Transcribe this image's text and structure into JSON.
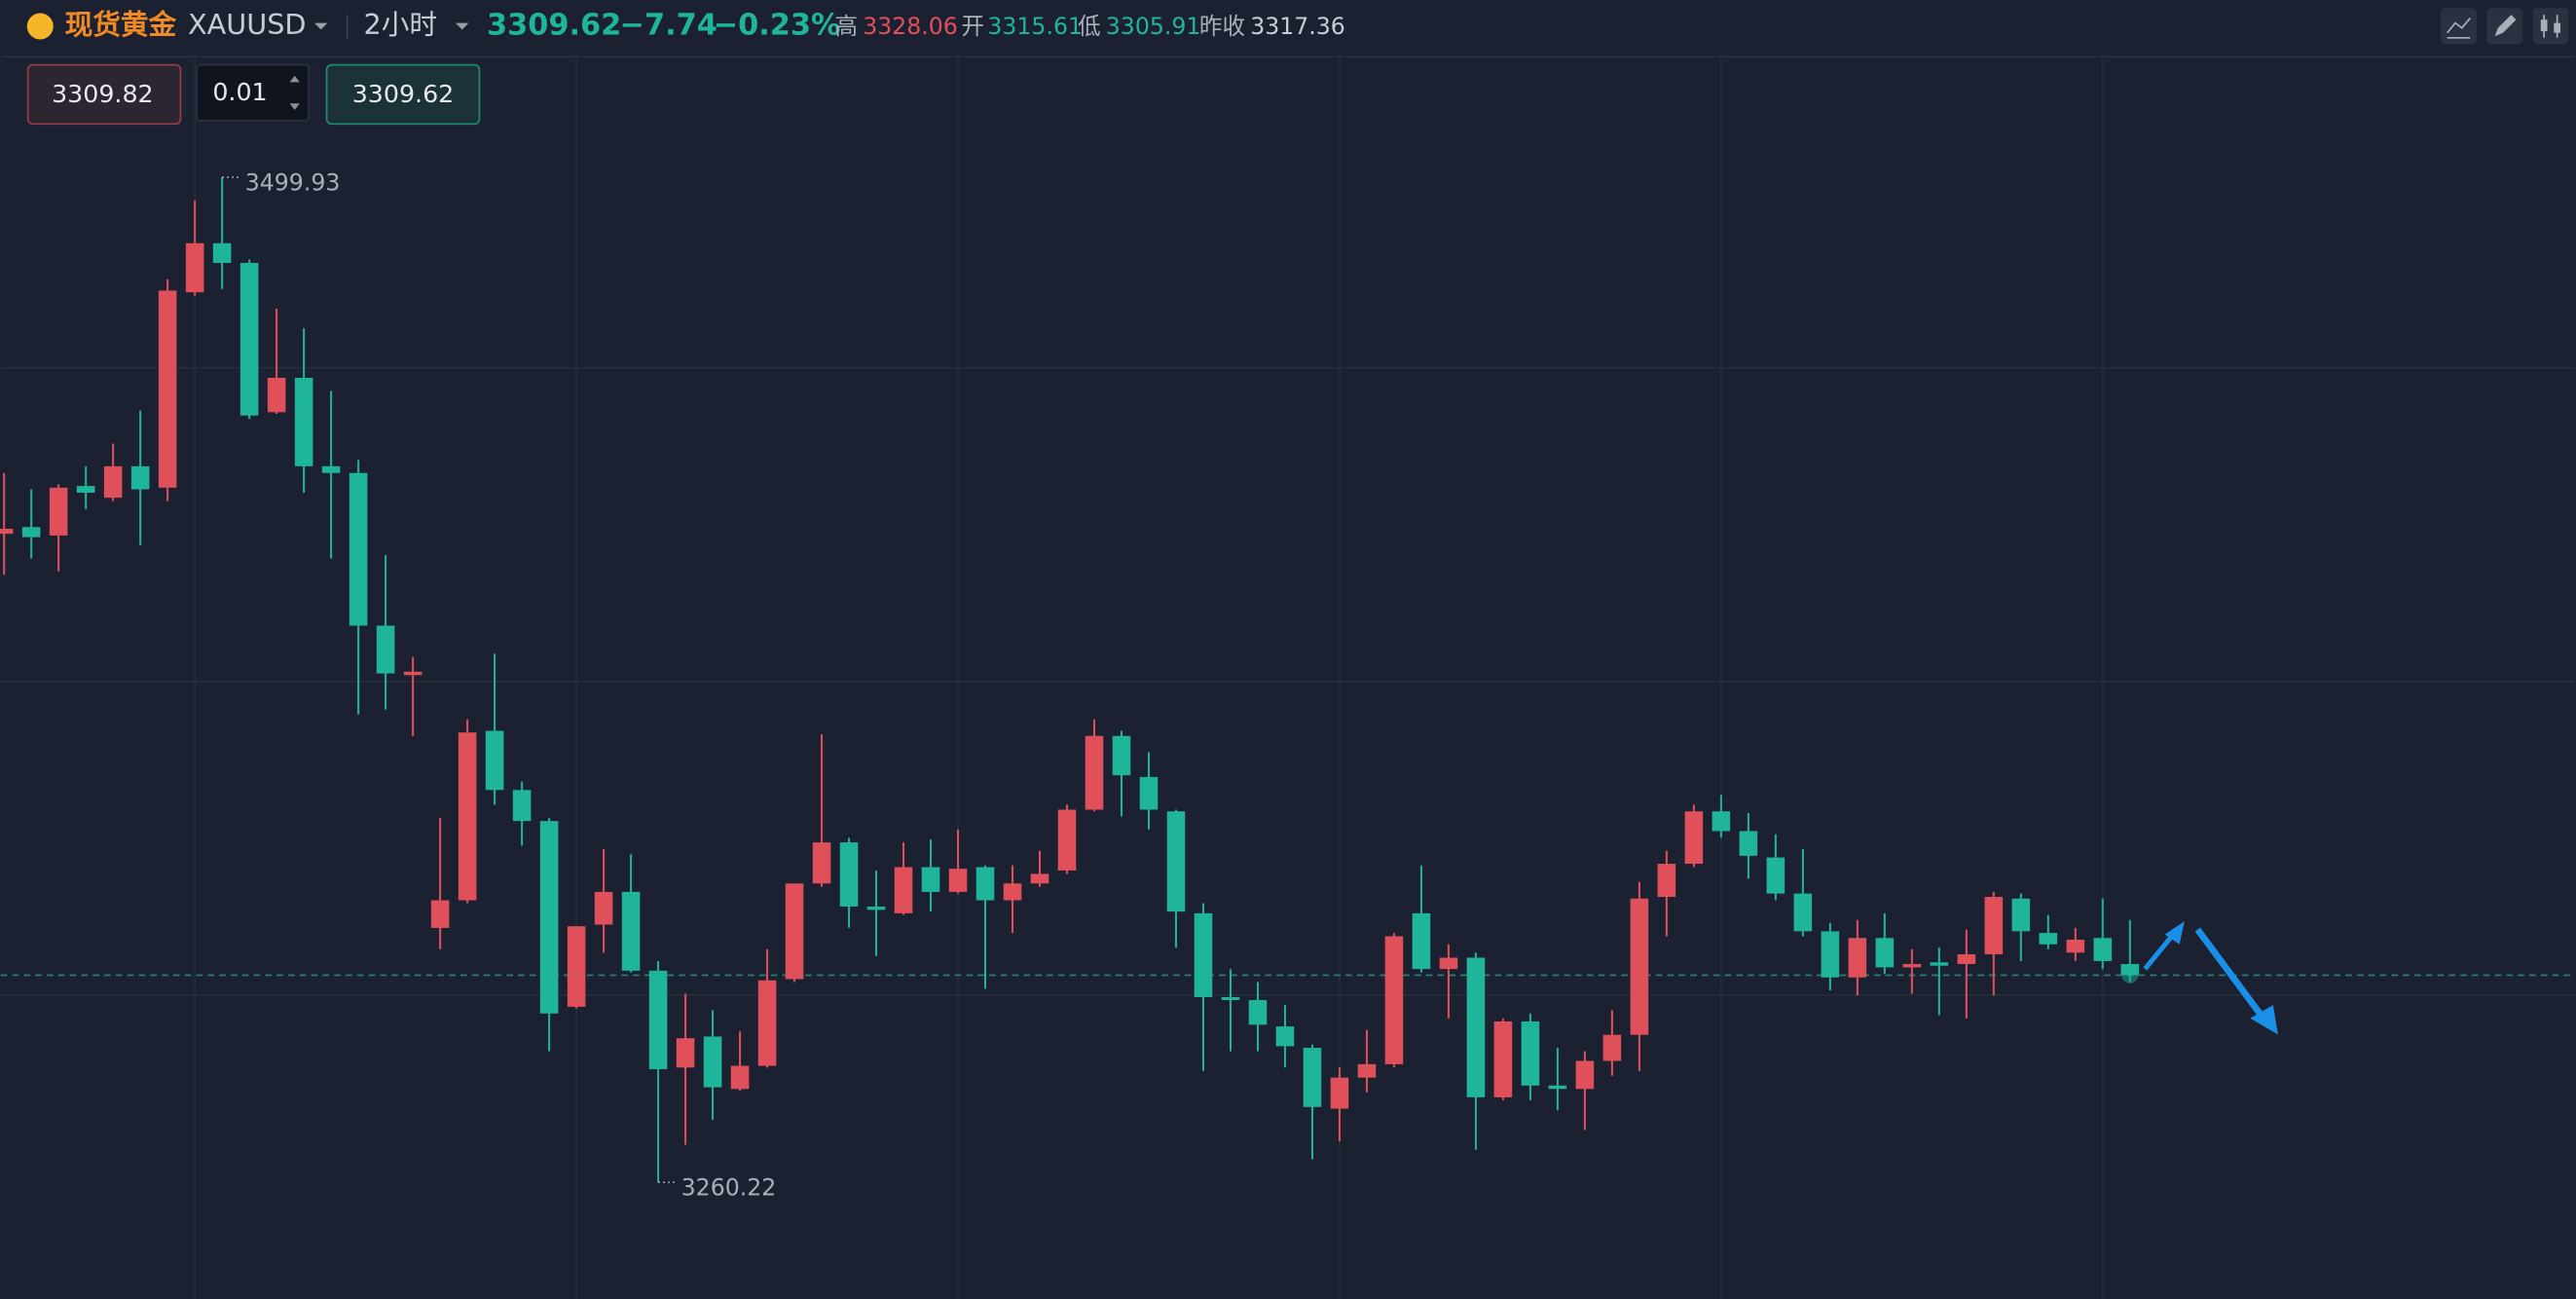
{
  "header": {
    "name": "现货黄金",
    "symbol": "XAUUSD",
    "period": "2小时",
    "price": "3309.62",
    "change": "−7.74",
    "change_pct": "−0.23%",
    "high_label": "高",
    "high": "3328.06",
    "open_label": "开",
    "open": "3315.61",
    "low_label": "低",
    "low": "3305.91",
    "prev_label": "昨收",
    "prev_close": "3317.36"
  },
  "order": {
    "sell": "3309.82",
    "lots": "0.01",
    "buy": "3309.62"
  },
  "chart_data": {
    "type": "candlestick",
    "up_color": "#e0505a",
    "down_color": "#1fb59a",
    "ylim": [
      3232.4,
      3528.5
    ],
    "open": [
      3414.9,
      3416.5,
      3414.5,
      3426.3,
      3423.5,
      3431.0,
      3425.9,
      3472.5,
      3484.2,
      3479.5,
      3443.9,
      3452.1,
      3431.0,
      3429.4,
      3393.0,
      3381.2,
      3320.9,
      3327.5,
      3367.9,
      3353.8,
      3346.4,
      3302.1,
      3321.7,
      3329.5,
      3310.7,
      3287.6,
      3295.0,
      3282.5,
      3288.0,
      3308.7,
      3331.5,
      3341.3,
      3326.0,
      3324.4,
      3335.4,
      3329.5,
      3335.4,
      3327.5,
      3331.5,
      3334.6,
      3349.1,
      3366.7,
      3356.9,
      3348.7,
      3324.4,
      3304.4,
      3303.7,
      3297.4,
      3292.3,
      3277.8,
      3285.2,
      3288.4,
      3324.4,
      3311.1,
      3313.8,
      3280.5,
      3298.6,
      3283.3,
      3282.5,
      3289.2,
      3295.4,
      3328.3,
      3336.2,
      3348.7,
      3344.0,
      3337.7,
      3329.1,
      3320.1,
      3309.1,
      3318.5,
      3311.5,
      3312.7,
      3312.3,
      3314.6,
      3327.9,
      3319.7,
      3315.0,
      3318.5,
      3312.3
    ],
    "high": [
      3429.4,
      3425.5,
      3426.7,
      3431.0,
      3436.4,
      3444.3,
      3475.6,
      3494.4,
      3499.93,
      3480.3,
      3468.6,
      3463.9,
      3449.0,
      3432.5,
      3409.8,
      3385.5,
      3347.1,
      3370.6,
      3386.3,
      3355.8,
      3347.1,
      3321.3,
      3339.7,
      3338.5,
      3313.0,
      3305.2,
      3301.3,
      3296.2,
      3315.8,
      3331.5,
      3367.1,
      3342.4,
      3334.6,
      3341.3,
      3342.0,
      3344.4,
      3335.8,
      3335.8,
      3339.3,
      3350.3,
      3370.6,
      3367.9,
      3362.8,
      3349.1,
      3326.8,
      3311.1,
      3308.0,
      3302.5,
      3293.1,
      3287.6,
      3296.6,
      3319.7,
      3335.8,
      3317.0,
      3315.0,
      3299.3,
      3300.5,
      3292.3,
      3291.5,
      3301.3,
      3331.9,
      3339.3,
      3350.3,
      3352.6,
      3348.3,
      3343.2,
      3339.7,
      3322.1,
      3322.8,
      3324.4,
      3315.8,
      3316.2,
      3320.5,
      3329.5,
      3329.1,
      3324.0,
      3320.9,
      3327.9,
      3322.8
    ],
    "low": [
      3405.1,
      3409.0,
      3405.9,
      3420.8,
      3422.7,
      3412.2,
      3422.7,
      3471.7,
      3473.3,
      3442.3,
      3443.5,
      3424.7,
      3409.0,
      3371.8,
      3373.0,
      3366.7,
      3315.8,
      3326.8,
      3350.3,
      3340.5,
      3291.5,
      3301.7,
      3315.0,
      3310.3,
      3260.22,
      3269.2,
      3275.1,
      3282.1,
      3287.6,
      3308.0,
      3330.7,
      3320.9,
      3314.2,
      3324.0,
      3324.8,
      3329.1,
      3306.4,
      3319.7,
      3330.7,
      3333.8,
      3348.7,
      3347.5,
      3344.4,
      3316.2,
      3286.8,
      3291.5,
      3291.5,
      3287.6,
      3265.7,
      3270.0,
      3281.7,
      3287.6,
      3310.3,
      3299.3,
      3268.0,
      3279.8,
      3279.8,
      3277.4,
      3272.7,
      3285.6,
      3286.8,
      3318.9,
      3335.4,
      3342.4,
      3332.6,
      3327.5,
      3318.9,
      3306.0,
      3304.8,
      3309.9,
      3305.2,
      3300.1,
      3299.3,
      3304.8,
      3313.0,
      3315.8,
      3313.0,
      3311.1,
      3308.0
    ],
    "close": [
      3416.1,
      3414.1,
      3425.9,
      3424.7,
      3431.0,
      3425.5,
      3472.9,
      3484.2,
      3479.5,
      3443.1,
      3452.1,
      3431.0,
      3429.4,
      3393.0,
      3381.6,
      3382.0,
      3327.5,
      3367.5,
      3353.8,
      3346.4,
      3300.5,
      3321.3,
      3329.5,
      3310.7,
      3287.2,
      3294.6,
      3282.9,
      3288.0,
      3308.4,
      3331.5,
      3341.3,
      3326.0,
      3325.2,
      3335.4,
      3329.5,
      3335.0,
      3327.5,
      3331.5,
      3333.8,
      3349.1,
      3366.7,
      3357.3,
      3349.1,
      3324.8,
      3304.4,
      3303.7,
      3297.8,
      3292.7,
      3278.2,
      3285.2,
      3288.4,
      3318.9,
      3311.1,
      3313.8,
      3280.5,
      3298.6,
      3283.3,
      3282.5,
      3289.2,
      3295.4,
      3327.9,
      3336.2,
      3348.7,
      3344.0,
      3338.1,
      3329.1,
      3320.1,
      3309.1,
      3318.5,
      3311.5,
      3312.3,
      3311.9,
      3314.6,
      3328.3,
      3320.1,
      3317.0,
      3318.1,
      3313.0,
      3309.62
    ]
  }
}
